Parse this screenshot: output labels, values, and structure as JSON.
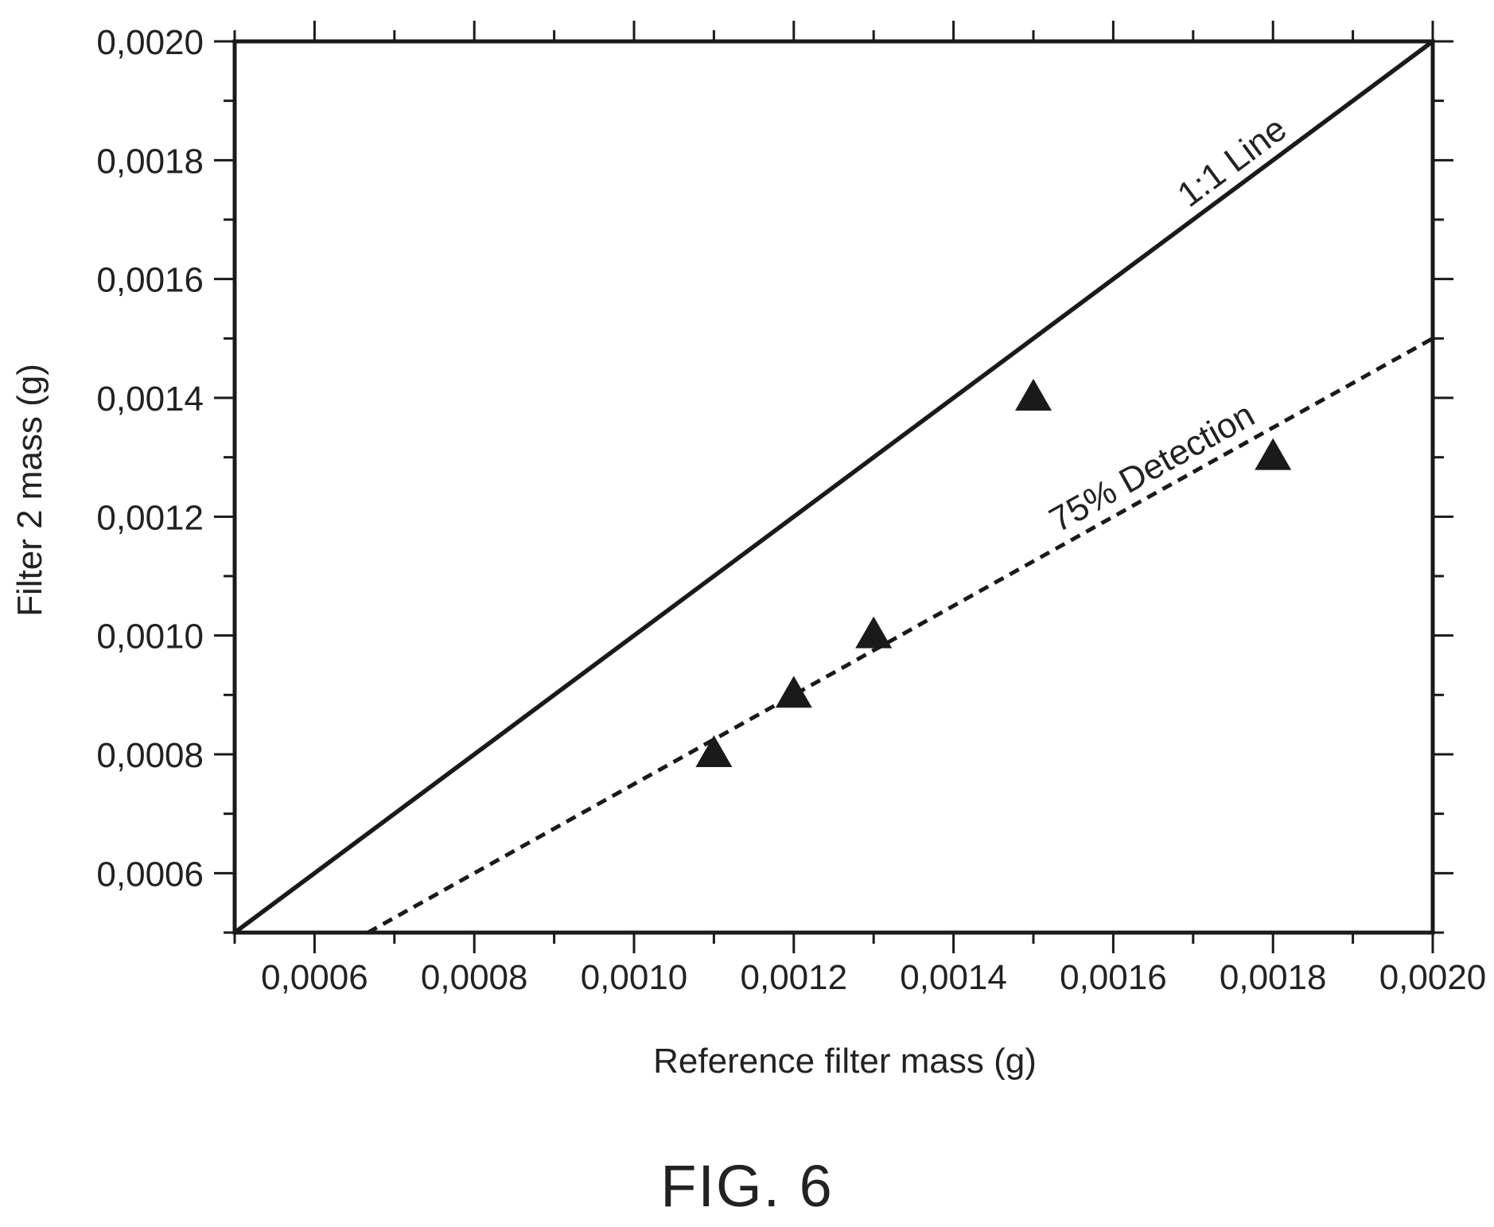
{
  "chart_data": {
    "type": "scatter",
    "title": "",
    "xlabel": "Reference filter mass (g)",
    "ylabel": "Filter 2 mass (g)",
    "xlim": [
      0.0005,
      0.002
    ],
    "ylim": [
      0.0005,
      0.002
    ],
    "x_tick_labels": [
      "0,0006",
      "0,0008",
      "0,0010",
      "0,0012",
      "0,0014",
      "0,0016",
      "0,0018",
      "0,0020"
    ],
    "x_tick_values": [
      0.0006,
      0.0008,
      0.001,
      0.0012,
      0.0014,
      0.0016,
      0.0018,
      0.002
    ],
    "y_tick_labels": [
      "0,0006",
      "0,0008",
      "0,0010",
      "0,0012",
      "0,0014",
      "0,0016",
      "0,0018",
      "0,0020"
    ],
    "y_tick_values": [
      0.0006,
      0.0008,
      0.001,
      0.0012,
      0.0014,
      0.0016,
      0.0018,
      0.002
    ],
    "minor_tick_step": 0.0001,
    "grid": false,
    "series": [
      {
        "marker": "triangle",
        "color": "#1a1a1a",
        "points": [
          {
            "x": 0.0011,
            "y": 0.0008
          },
          {
            "x": 0.0012,
            "y": 0.0009
          },
          {
            "x": 0.0013,
            "y": 0.001
          },
          {
            "x": 0.0015,
            "y": 0.0014
          },
          {
            "x": 0.0018,
            "y": 0.0013
          }
        ]
      }
    ],
    "reference_lines": [
      {
        "label": "1:1 Line",
        "slope": 1.0,
        "style": "solid",
        "color": "#1a1a1a"
      },
      {
        "label": "75% Detection",
        "slope": 0.75,
        "style": "dashed",
        "color": "#1a1a1a"
      }
    ]
  },
  "caption": "FIG. 6"
}
